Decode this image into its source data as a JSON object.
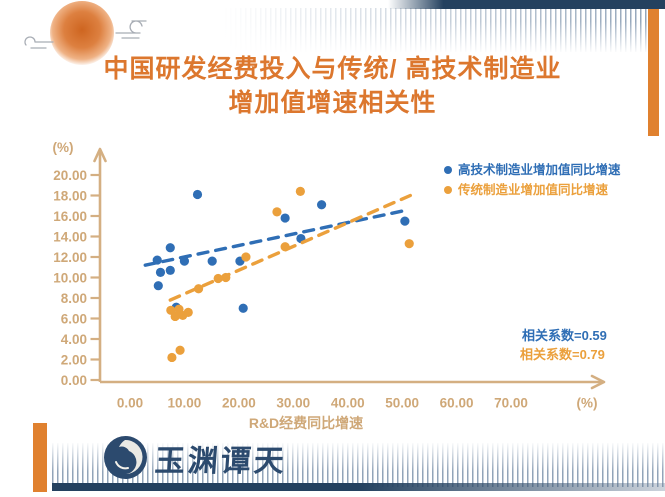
{
  "header": {
    "title_line1": "中国研发经费投入与传统/ 高技术制造业",
    "title_line2": "增加值增速相关性"
  },
  "brand": {
    "name": "玉渊谭天"
  },
  "colors": {
    "title_orange": "#DC772E",
    "axis_tan": "#CFA878",
    "series_blue": "#2F6EB5",
    "series_orange": "#EBA03C",
    "navy": "#24415F",
    "frame_orange": "#E0812F"
  },
  "chart_data": {
    "type": "scatter",
    "title": "中国研发经费投入与传统/高技术制造业增加值增速相关性",
    "xlabel": "R&D经费同比增速",
    "x_unit": "(%)",
    "y_unit": "(%)",
    "xlim": [
      0,
      70
    ],
    "ylim": [
      0,
      20
    ],
    "x_ticks": [
      "0.00",
      "10.00",
      "20.00",
      "30.00",
      "40.00",
      "50.00",
      "60.00",
      "70.00"
    ],
    "y_ticks": [
      "0.00",
      "2.00",
      "4.00",
      "6.00",
      "8.00",
      "10.00",
      "12.00",
      "14.00",
      "16.00",
      "18.00",
      "20.00"
    ],
    "grid": false,
    "legend_position": "top-right",
    "series": [
      {
        "name": "高技术制造业增加值同比增速",
        "color": "#2F6EB5",
        "points": [
          [
            12.4,
            18.1
          ],
          [
            35.2,
            17.1
          ],
          [
            28.5,
            15.8
          ],
          [
            50.5,
            15.5
          ],
          [
            31.4,
            13.8
          ],
          [
            7.4,
            12.9
          ],
          [
            5.0,
            11.7
          ],
          [
            10.0,
            11.6
          ],
          [
            15.1,
            11.6
          ],
          [
            20.2,
            11.6
          ],
          [
            7.4,
            10.7
          ],
          [
            5.6,
            10.5
          ],
          [
            5.2,
            9.2
          ],
          [
            8.5,
            7.1
          ],
          [
            20.8,
            7.0
          ]
        ],
        "trendline": [
          [
            2.8,
            11.2
          ],
          [
            50.2,
            16.5
          ]
        ],
        "correlation_label": "相关系数=0.59"
      },
      {
        "name": "传统制造业增加值同比增速",
        "color": "#EBA03C",
        "points": [
          [
            31.3,
            18.4
          ],
          [
            27.0,
            16.4
          ],
          [
            51.3,
            13.3
          ],
          [
            28.5,
            13.0
          ],
          [
            21.3,
            12.0
          ],
          [
            17.6,
            10.0
          ],
          [
            16.2,
            9.9
          ],
          [
            12.6,
            8.9
          ],
          [
            10.7,
            6.6
          ],
          [
            9.0,
            6.9
          ],
          [
            7.5,
            6.8
          ],
          [
            8.3,
            6.2
          ],
          [
            9.7,
            6.3
          ],
          [
            9.2,
            2.9
          ],
          [
            7.7,
            2.2
          ]
        ],
        "trendline": [
          [
            7.4,
            7.8
          ],
          [
            51.5,
            18.0
          ]
        ],
        "correlation_label": "相关系数=0.79"
      }
    ]
  }
}
